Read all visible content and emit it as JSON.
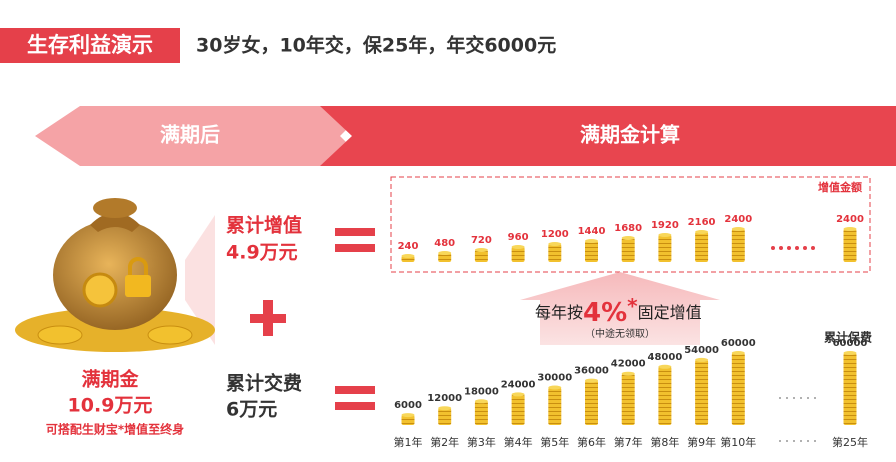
{
  "header": {
    "tag": "生存利益演示",
    "subtitle": "30岁女，10年交，保25年，年交6000元"
  },
  "banner": {
    "left": "满期后",
    "right": "满期金计算"
  },
  "maturity": {
    "label": "满期金",
    "amount": "10.9万元",
    "note": "可搭配生财宝*增值至终身"
  },
  "gain": {
    "label": "累计增值",
    "amount": "4.9万元",
    "box_title": "增值金额",
    "values": [
      240,
      480,
      720,
      960,
      1200,
      1440,
      1680,
      1920,
      2160,
      2400,
      2400
    ]
  },
  "rate": {
    "prefix": "每年按",
    "rate": "4%",
    "star": "*",
    "suffix": "固定增值",
    "note": "（中途无领取）"
  },
  "premium": {
    "label": "累计交费",
    "amount": "6万元",
    "title": "累计保费",
    "values": [
      6000,
      12000,
      18000,
      24000,
      30000,
      36000,
      42000,
      48000,
      54000,
      60000,
      60000
    ]
  },
  "years": [
    "第1年",
    "第2年",
    "第3年",
    "第4年",
    "第5年",
    "第6年",
    "第7年",
    "第8年",
    "第9年",
    "第10年",
    "第25年"
  ]
}
